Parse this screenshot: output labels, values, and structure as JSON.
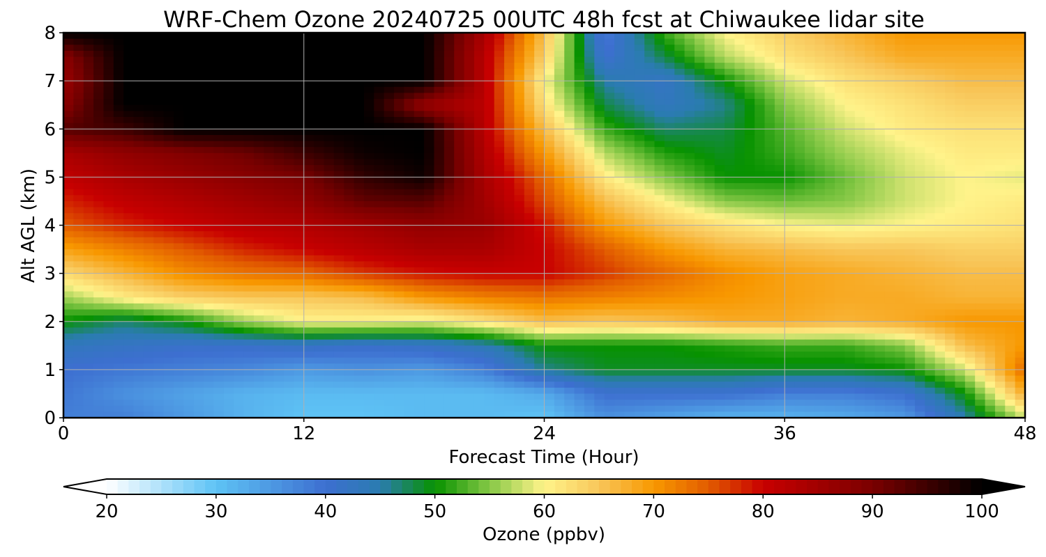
{
  "chart_data": {
    "type": "heatmap",
    "title": "WRF-Chem Ozone  20240725 00UTC 48h fcst at Chiwaukee lidar site",
    "xlabel": "Forecast Time (Hour)",
    "ylabel": "Alt AGL (km)",
    "xlim": [
      0,
      48
    ],
    "ylim": [
      0,
      8
    ],
    "x_ticks": [
      0,
      12,
      24,
      36,
      48
    ],
    "y_ticks": [
      0,
      1,
      2,
      3,
      4,
      5,
      6,
      7,
      8
    ],
    "grid": true,
    "colorbar": {
      "label": "Ozone  (ppbv)",
      "min": 20,
      "max": 100,
      "ticks": [
        20,
        30,
        40,
        50,
        60,
        70,
        80,
        90,
        100
      ],
      "extend": "both",
      "colormap": [
        [
          20,
          "#ffffff"
        ],
        [
          30,
          "#5ec3f5"
        ],
        [
          40,
          "#3d6fd0"
        ],
        [
          45,
          "#2a7cb0"
        ],
        [
          50,
          "#079200"
        ],
        [
          55,
          "#86c846"
        ],
        [
          60,
          "#fff38a"
        ],
        [
          65,
          "#f8c65a"
        ],
        [
          70,
          "#f89800"
        ],
        [
          75,
          "#e25c00"
        ],
        [
          80,
          "#c80000"
        ],
        [
          90,
          "#7a0000"
        ],
        [
          100,
          "#000000"
        ]
      ]
    },
    "altitudes_km": [
      0,
      0.5,
      1,
      1.5,
      2,
      2.5,
      3,
      3.5,
      4,
      4.5,
      5,
      5.5,
      6,
      6.5,
      7,
      7.5,
      8
    ],
    "hours": [
      0,
      3,
      6,
      9,
      12,
      15,
      18,
      21,
      24,
      27,
      30,
      33,
      36,
      39,
      42,
      45,
      48
    ],
    "ozone_ppbv": [
      [
        38,
        38,
        35,
        32,
        30,
        30,
        31,
        31,
        30,
        36,
        34,
        32,
        32,
        33,
        35,
        45,
        58
      ],
      [
        39,
        36,
        34,
        32,
        31,
        31,
        31,
        31,
        33,
        40,
        40,
        40,
        38,
        38,
        40,
        50,
        68
      ],
      [
        40,
        39,
        38,
        37,
        35,
        36,
        35,
        38,
        46,
        49,
        49,
        49,
        49,
        49,
        50,
        58,
        74
      ],
      [
        43,
        42,
        41,
        41,
        42,
        41,
        42,
        44,
        50,
        50,
        50,
        51,
        52,
        52,
        55,
        66,
        70
      ],
      [
        50,
        47,
        50,
        56,
        60,
        60,
        59,
        62,
        66,
        65,
        66,
        68,
        68,
        67,
        68,
        70,
        70
      ],
      [
        56,
        61,
        64,
        65,
        65,
        66,
        70,
        72,
        73,
        72,
        71,
        70,
        69,
        68,
        68,
        67,
        67
      ],
      [
        63,
        67,
        71,
        73,
        74,
        77,
        79,
        80,
        80,
        77,
        74,
        71,
        69,
        68,
        67,
        66,
        66
      ],
      [
        69,
        72,
        75,
        78,
        80,
        82,
        84,
        84,
        80,
        75,
        70,
        67,
        66,
        65,
        65,
        64,
        64
      ],
      [
        75,
        78,
        80,
        82,
        83,
        85,
        87,
        86,
        79,
        70,
        65,
        62,
        60,
        59,
        60,
        61,
        62
      ],
      [
        78,
        81,
        83,
        85,
        87,
        92,
        93,
        85,
        76,
        66,
        60,
        55,
        54,
        55,
        58,
        60,
        61
      ],
      [
        81,
        84,
        86,
        88,
        90,
        96,
        99,
        84,
        74,
        61,
        55,
        50,
        50,
        54,
        58,
        60,
        59
      ],
      [
        84,
        87,
        89,
        91,
        95,
        99,
        100,
        83,
        70,
        57,
        51,
        49,
        52,
        56,
        59,
        61,
        61
      ],
      [
        93,
        95,
        100,
        100,
        100,
        100,
        100,
        82,
        66,
        52,
        47,
        48,
        53,
        58,
        61,
        62,
        62
      ],
      [
        88,
        100,
        100,
        100,
        100,
        100,
        86,
        82,
        62,
        48,
        43,
        46,
        55,
        60,
        62,
        64,
        64
      ],
      [
        86,
        100,
        100,
        100,
        100,
        100,
        100,
        82,
        60,
        45,
        42,
        50,
        58,
        62,
        64,
        66,
        66
      ],
      [
        88,
        100,
        100,
        100,
        100,
        100,
        100,
        82,
        64,
        40,
        48,
        57,
        62,
        65,
        68,
        68,
        68
      ],
      [
        100,
        100,
        100,
        100,
        100,
        100,
        100,
        84,
        66,
        38,
        52,
        60,
        64,
        67,
        70,
        70,
        70
      ]
    ]
  }
}
